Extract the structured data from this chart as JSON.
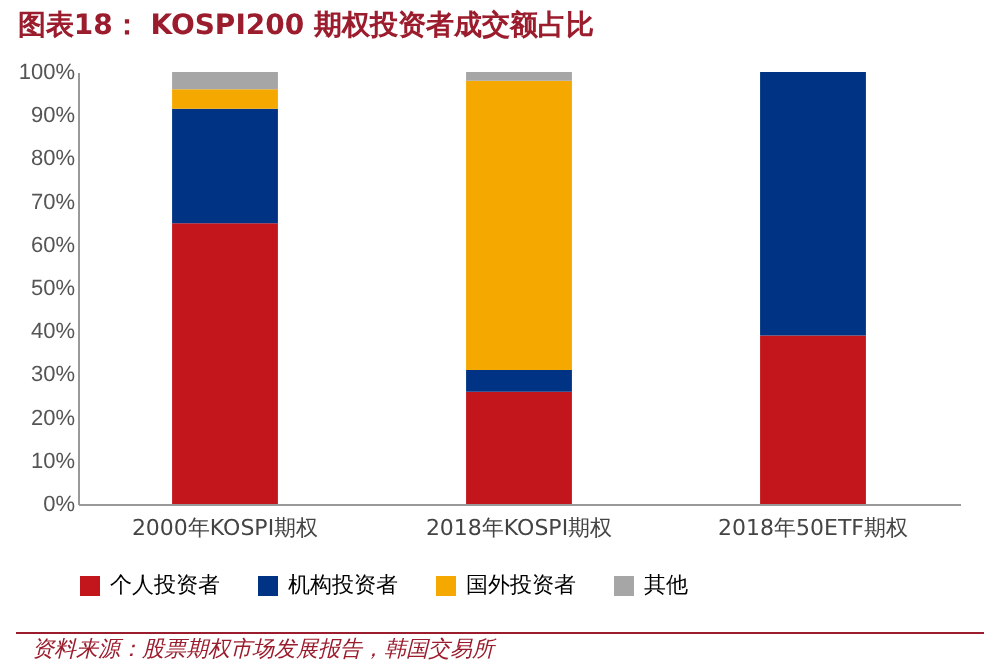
{
  "chart_data": {
    "type": "bar",
    "title": "图表18：  KOSPI200 期权投资者成交额占比",
    "categories": [
      "2000年KOSPI期权",
      "2018年KOSPI期权",
      "2018年50ETF期权"
    ],
    "stacked": true,
    "series": [
      {
        "name": "个人投资者",
        "color": "#c3161c",
        "values": [
          65,
          26,
          39
        ]
      },
      {
        "name": "机构投资者",
        "color": "#003384",
        "values": [
          26.5,
          5,
          61
        ]
      },
      {
        "name": "国外投资者",
        "color": "#f5a800",
        "values": [
          4.5,
          67,
          0
        ]
      },
      {
        "name": "其他",
        "color": "#a6a6a6",
        "values": [
          4,
          2,
          0
        ]
      }
    ],
    "ylim": [
      0,
      100
    ],
    "yticks": [
      {
        "value": 0,
        "label": "0%"
      },
      {
        "value": 10,
        "label": "10%"
      },
      {
        "value": 20,
        "label": "20%"
      },
      {
        "value": 30,
        "label": "30%"
      },
      {
        "value": 40,
        "label": "40%"
      },
      {
        "value": 50,
        "label": "50%"
      },
      {
        "value": 60,
        "label": "60%"
      },
      {
        "value": 70,
        "label": "70%"
      },
      {
        "value": 80,
        "label": "80%"
      },
      {
        "value": 90,
        "label": "90%"
      },
      {
        "value": 100,
        "label": "100%"
      }
    ],
    "grid": false,
    "legend": "bottom",
    "annotations": [
      "资料来源：股票期权市场发展报告，韩国交易所"
    ]
  }
}
